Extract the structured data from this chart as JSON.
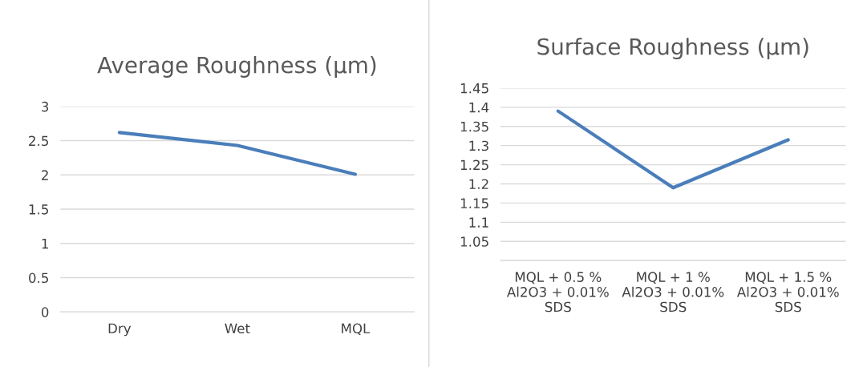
{
  "chart_data": [
    {
      "type": "line",
      "title": "Average Roughness (µm)",
      "categories": [
        "Dry",
        "Wet",
        "MQL"
      ],
      "series": [
        {
          "color": "#4a7ebb",
          "values": [
            2.62,
            2.43,
            2.01
          ]
        }
      ],
      "ylim": [
        0,
        3
      ],
      "yticks": [
        0,
        0.5,
        1,
        1.5,
        2,
        2.5,
        3
      ],
      "grid": "y",
      "marker": "none",
      "line_style": "solid"
    },
    {
      "type": "line",
      "title": "Surface Roughness (µm)",
      "categories": [
        "MQL + 0.5 %\nAl2O3 + 0.01%\nSDS",
        "MQL + 1 %\nAl2O3 + 0.01%\nSDS",
        "MQL + 1.5 %\nAl2O3 + 0.01%\nSDS"
      ],
      "series": [
        {
          "color": "#4a7ebb",
          "values": [
            1.39,
            1.19,
            1.315
          ]
        }
      ],
      "ylim": [
        1,
        1.45
      ],
      "yticks": [
        {
          "value": 1,
          "label": null
        },
        1.05,
        1.1,
        1.15,
        1.2,
        1.25,
        1.3,
        1.35,
        1.4,
        1.45
      ],
      "grid": "y",
      "marker": "none",
      "line_style": "solid"
    }
  ]
}
